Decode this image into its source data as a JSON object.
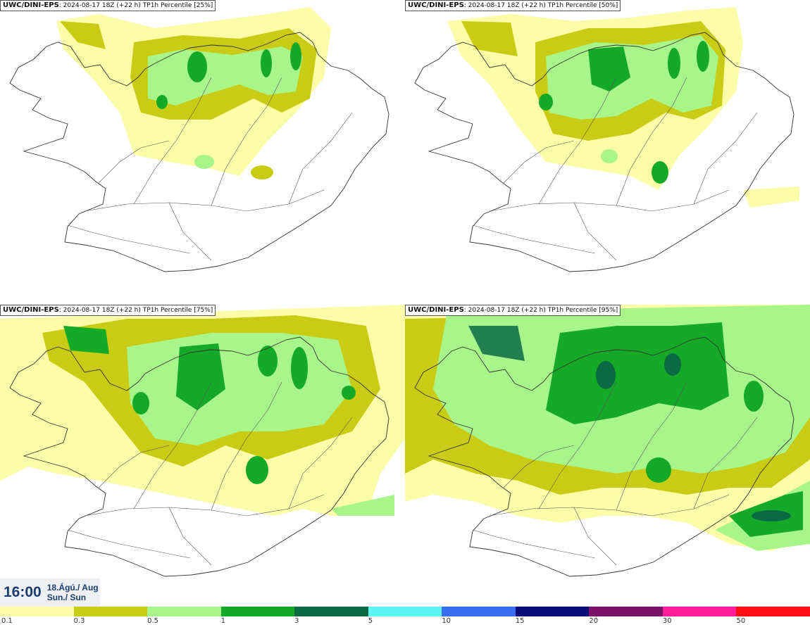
{
  "panels": [
    {
      "model": "UWC/DINI-EPS",
      "run": "2024-08-17 18Z (+22 h)",
      "variable": "TP1h Percentile [25%]"
    },
    {
      "model": "UWC/DINI-EPS",
      "run": "2024-08-17 18Z (+22 h)",
      "variable": "TP1h Percentile [50%]"
    },
    {
      "model": "UWC/DINI-EPS",
      "run": "2024-08-17 18Z (+22 h)",
      "variable": "TP1h Percentile [75%]"
    },
    {
      "model": "UWC/DINI-EPS",
      "run": "2024-08-17 18Z (+22 h)",
      "variable": "TP1h Percentile [95%]"
    }
  ],
  "valid_time": {
    "time": "16:00",
    "date_line": "18.Ágú./ Aug",
    "day_line": "Sun./ Sun"
  },
  "legend": {
    "labels": [
      "0.1",
      "0.3",
      "0.5",
      "1",
      "3",
      "5",
      "10",
      "15",
      "20",
      "30",
      "50"
    ],
    "colors": [
      "#fdfca8",
      "#c9cc14",
      "#a8f58a",
      "#14aa28",
      "#0b6a45",
      "#5ff5f5",
      "#3b6ff2",
      "#0a0a78",
      "#7a1268",
      "#ff1f9a",
      "#ff1010"
    ]
  }
}
